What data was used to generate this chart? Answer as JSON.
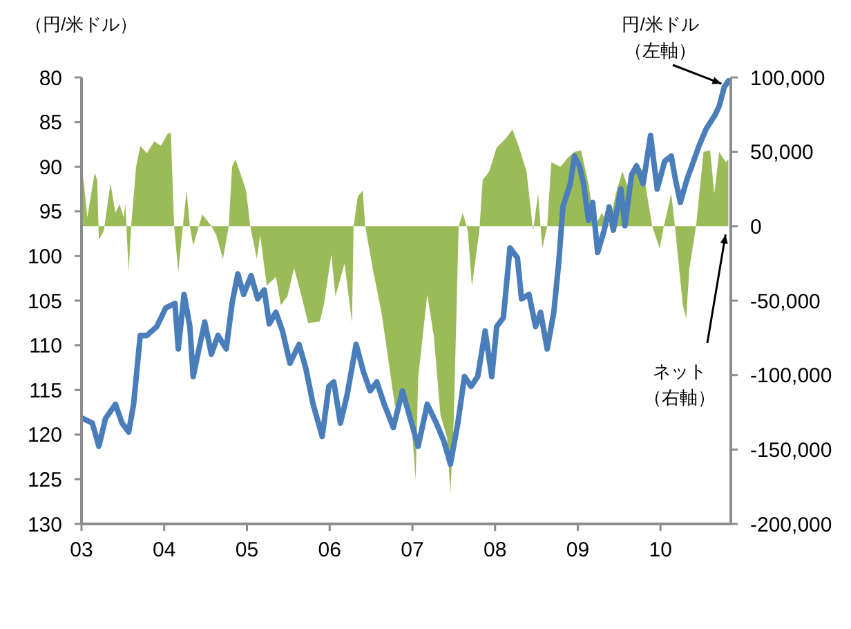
{
  "chart_data": {
    "type": "line",
    "ylabel": "（円/米ドル）",
    "grid": false,
    "xlim": [
      2003,
      2010.85
    ],
    "xticks": [
      {
        "value": 2003,
        "label": "03"
      },
      {
        "value": 2004,
        "label": "04"
      },
      {
        "value": 2005,
        "label": "05"
      },
      {
        "value": 2006,
        "label": "06"
      },
      {
        "value": 2007,
        "label": "07"
      },
      {
        "value": 2008,
        "label": "08"
      },
      {
        "value": 2009,
        "label": "09"
      },
      {
        "value": 2010,
        "label": "10"
      }
    ],
    "ylim": [
      130,
      80
    ],
    "yticks": [
      80,
      85,
      90,
      95,
      100,
      105,
      110,
      115,
      120,
      125,
      130
    ],
    "y2lim": [
      -200000,
      100000
    ],
    "y2ticks": [
      {
        "value": -200000,
        "label": "-200,000"
      },
      {
        "value": -150000,
        "label": "-150,000"
      },
      {
        "value": -100000,
        "label": "-100,000"
      },
      {
        "value": -50000,
        "label": "-50,000"
      },
      {
        "value": 0,
        "label": "0"
      },
      {
        "value": 50000,
        "label": "50,000"
      },
      {
        "value": 100000,
        "label": "100,000"
      }
    ],
    "series": [
      {
        "name": "ネット（右軸）",
        "type": "area",
        "axis": "y2",
        "color": "#9bbb59",
        "x": [
          2003.0,
          2003.02,
          2003.07,
          2003.16,
          2003.19,
          2003.21,
          2003.27,
          2003.35,
          2003.41,
          2003.46,
          2003.51,
          2003.53,
          2003.57,
          2003.6,
          2003.66,
          2003.71,
          2003.79,
          2003.88,
          2003.96,
          2004.04,
          2004.08,
          2004.12,
          2004.17,
          2004.22,
          2004.27,
          2004.31,
          2004.35,
          2004.46,
          2004.57,
          2004.63,
          2004.71,
          2004.78,
          2004.82,
          2004.86,
          2004.93,
          2004.99,
          2005.04,
          2005.12,
          2005.16,
          2005.24,
          2005.35,
          2005.41,
          2005.49,
          2005.57,
          2005.66,
          2005.74,
          2005.88,
          2005.93,
          2006.02,
          2006.07,
          2006.18,
          2006.27,
          2006.29,
          2006.34,
          2006.4,
          2006.43,
          2006.52,
          2006.63,
          2006.71,
          2006.79,
          2006.91,
          2006.99,
          2007.04,
          2007.07,
          2007.18,
          2007.26,
          2007.34,
          2007.42,
          2007.46,
          2007.5,
          2007.56,
          2007.61,
          2007.67,
          2007.72,
          2007.81,
          2007.85,
          2007.93,
          2008.02,
          2008.13,
          2008.21,
          2008.29,
          2008.38,
          2008.46,
          2008.52,
          2008.57,
          2008.63,
          2008.68,
          2008.79,
          2008.88,
          2008.96,
          2009.04,
          2009.13,
          2009.21,
          2009.29,
          2009.38,
          2009.46,
          2009.54,
          2009.63,
          2009.71,
          2009.79,
          2009.9,
          2009.99,
          2010.04,
          2010.13,
          2010.18,
          2010.27,
          2010.31,
          2010.35,
          2010.43,
          2010.52,
          2010.6,
          2010.65,
          2010.71,
          2010.79,
          2010.82
        ],
        "values": [
          0,
          34000,
          6000,
          36000,
          31000,
          -9000,
          -3000,
          29000,
          9000,
          15000,
          6000,
          15000,
          -31000,
          0,
          40000,
          54000,
          49000,
          57000,
          54000,
          62000,
          63000,
          0,
          -31000,
          -3000,
          24000,
          0,
          -13000,
          8000,
          0,
          -6000,
          -22000,
          0,
          40000,
          45000,
          34000,
          24000,
          0,
          -22000,
          -6000,
          -40000,
          -34000,
          -53000,
          -47000,
          -28000,
          -47000,
          -65000,
          -64000,
          -53000,
          -19000,
          -47000,
          -25000,
          -65000,
          0,
          20000,
          24000,
          0,
          -28000,
          -59000,
          -90000,
          -121000,
          -115000,
          -133000,
          -170000,
          -102000,
          -46000,
          -74000,
          -127000,
          -142000,
          -180000,
          -130000,
          0,
          9000,
          -3000,
          -40000,
          -3000,
          31000,
          37000,
          53000,
          59000,
          65000,
          53000,
          37000,
          -3000,
          22000,
          -15000,
          0,
          43000,
          40000,
          46000,
          50000,
          51000,
          28000,
          0,
          9000,
          0,
          22000,
          37000,
          22000,
          43000,
          37000,
          0,
          -15000,
          0,
          22000,
          -3000,
          -53000,
          -62000,
          -28000,
          0,
          50000,
          51000,
          22000,
          50000,
          43000,
          45000
        ]
      },
      {
        "name": "円/米ドル（左軸）",
        "axis": "y",
        "color": "#4a7ebb",
        "x": [
          2003.02,
          2003.13,
          2003.21,
          2003.29,
          2003.41,
          2003.49,
          2003.57,
          2003.63,
          2003.71,
          2003.79,
          2003.91,
          2004.02,
          2004.13,
          2004.17,
          2004.24,
          2004.31,
          2004.35,
          2004.42,
          2004.49,
          2004.57,
          2004.65,
          2004.75,
          2004.82,
          2004.89,
          2004.96,
          2005.05,
          2005.13,
          2005.21,
          2005.27,
          2005.35,
          2005.43,
          2005.52,
          2005.63,
          2005.71,
          2005.8,
          2005.91,
          2005.99,
          2006.05,
          2006.13,
          2006.21,
          2006.32,
          2006.41,
          2006.49,
          2006.57,
          2006.66,
          2006.77,
          2006.88,
          2006.99,
          2007.07,
          2007.18,
          2007.29,
          2007.38,
          2007.46,
          2007.55,
          2007.63,
          2007.71,
          2007.79,
          2007.88,
          2007.96,
          2008.02,
          2008.1,
          2008.18,
          2008.27,
          2008.32,
          2008.41,
          2008.49,
          2008.55,
          2008.63,
          2008.71,
          2008.77,
          2008.82,
          2008.91,
          2008.96,
          2009.02,
          2009.07,
          2009.13,
          2009.18,
          2009.24,
          2009.32,
          2009.38,
          2009.43,
          2009.52,
          2009.57,
          2009.65,
          2009.71,
          2009.79,
          2009.88,
          2009.96,
          2010.05,
          2010.13,
          2010.18,
          2010.24,
          2010.32,
          2010.38,
          2010.46,
          2010.55,
          2010.66,
          2010.71,
          2010.77,
          2010.82
        ],
        "values": [
          118.2,
          118.7,
          121.3,
          118.2,
          116.6,
          118.7,
          119.7,
          116.6,
          108.9,
          108.9,
          107.9,
          105.8,
          105.3,
          110.4,
          104.3,
          107.9,
          113.5,
          110.4,
          107.4,
          111.0,
          108.9,
          110.4,
          105.3,
          102.0,
          104.3,
          102.2,
          104.8,
          103.8,
          107.6,
          106.3,
          108.4,
          112.0,
          109.9,
          112.5,
          116.6,
          120.2,
          114.6,
          114.1,
          118.7,
          115.6,
          109.9,
          113.0,
          115.1,
          114.1,
          116.6,
          119.2,
          115.1,
          118.7,
          121.3,
          116.6,
          118.7,
          120.7,
          123.3,
          118.7,
          113.5,
          114.6,
          113.5,
          108.4,
          113.5,
          107.9,
          106.9,
          99.1,
          100.2,
          104.8,
          104.3,
          107.9,
          106.3,
          110.4,
          106.3,
          100.7,
          94.5,
          91.9,
          88.8,
          89.9,
          91.9,
          96.0,
          94.0,
          99.6,
          97.1,
          94.5,
          97.1,
          92.5,
          96.6,
          90.9,
          89.9,
          91.9,
          86.5,
          92.5,
          89.4,
          88.8,
          91.4,
          94.0,
          91.4,
          89.9,
          87.8,
          85.8,
          84.2,
          83.2,
          81.1,
          80.4
        ]
      }
    ]
  }
}
